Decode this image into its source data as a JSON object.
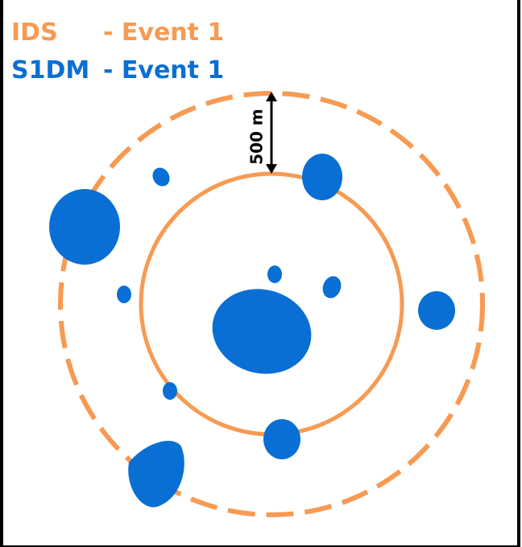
{
  "legend": [
    {
      "name": "IDS",
      "label": "- Event 1",
      "color": "#f79a52"
    },
    {
      "name": "S1DM",
      "label": "- Event 1",
      "color": "#0a6fd4"
    }
  ],
  "annotation": "500 m"
}
